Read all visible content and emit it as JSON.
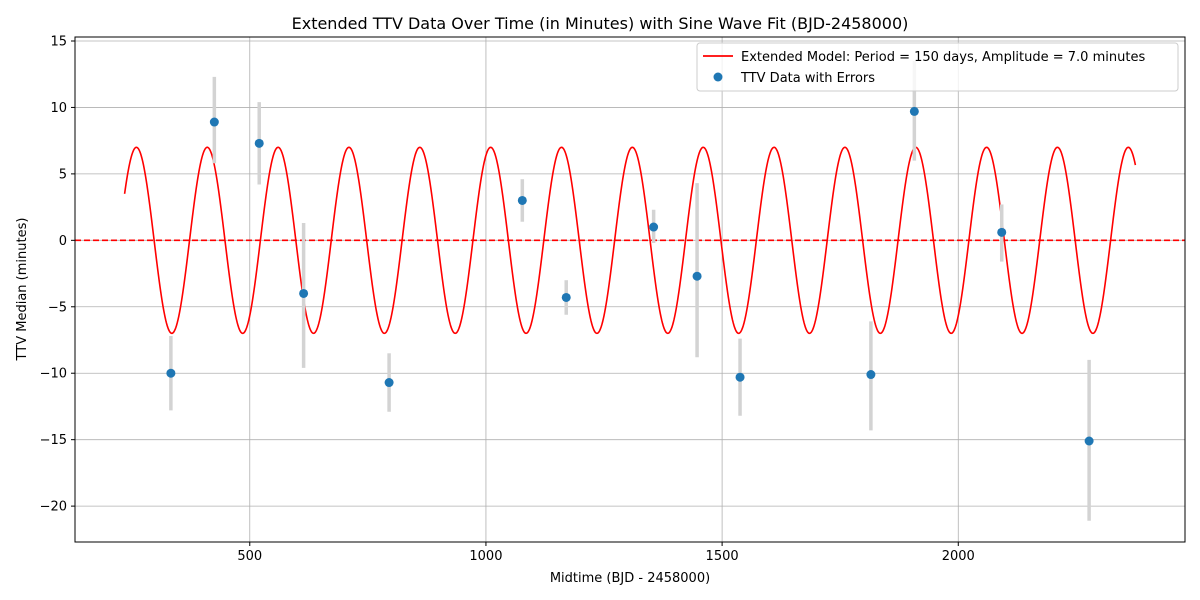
{
  "chart_data": {
    "type": "scatter",
    "title": "Extended TTV Data Over Time (in Minutes) with Sine Wave Fit (BJD-2458000)",
    "xlabel": "Midtime (BJD - 2458000)",
    "ylabel": "TTV Median (minutes)",
    "xlim": [
      130,
      2480
    ],
    "ylim": [
      -22.7,
      15.3
    ],
    "xticks": [
      500,
      1000,
      1500,
      2000
    ],
    "yticks": [
      -20,
      -15,
      -10,
      -5,
      0,
      5,
      10,
      15
    ],
    "xtick_labels": [
      "500",
      "1000",
      "1500",
      "2000"
    ],
    "ytick_labels": [
      "−20",
      "−15",
      "−10",
      "−5",
      "0",
      "5",
      "10",
      "15"
    ],
    "grid": true,
    "legend_position": "upper right",
    "model": {
      "name": "Extended Model: Period = 150 days, Amplitude = 7.0 minutes",
      "period": 150,
      "amplitude": 7.0,
      "phase_reference_x": 260,
      "x_start": 235,
      "x_end": 2375,
      "color": "#ff0000"
    },
    "reference_line": {
      "y": 0,
      "color": "#ff0000",
      "style": "dashed"
    },
    "series": [
      {
        "name": "TTV Data with Errors",
        "color": "#1f77b4",
        "errorbar_color": "#d3d3d3",
        "x": [
          333,
          425,
          520,
          614,
          795,
          1077,
          1170,
          1355,
          1447,
          1538,
          1815,
          1907,
          2092,
          2277
        ],
        "y": [
          -10.0,
          8.9,
          7.3,
          -4.0,
          -10.7,
          3.0,
          -4.3,
          1.0,
          -2.7,
          -10.3,
          -10.1,
          9.7,
          0.6,
          -15.1
        ],
        "yerr_low": [
          2.8,
          3.1,
          3.1,
          5.6,
          2.2,
          1.6,
          1.3,
          1.2,
          6.1,
          2.9,
          4.2,
          3.7,
          2.2,
          6.0
        ],
        "yerr_high": [
          2.8,
          3.4,
          3.1,
          5.3,
          2.2,
          1.6,
          1.3,
          1.3,
          7.0,
          2.9,
          4.0,
          3.8,
          2.1,
          6.1
        ]
      }
    ]
  }
}
